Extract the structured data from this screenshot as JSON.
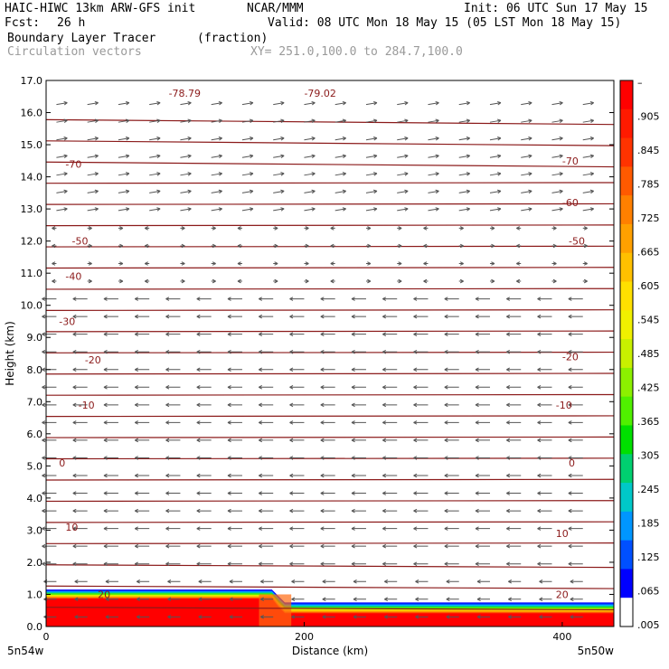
{
  "header": {
    "model": "HAIC-HIWC 13km ARW-GFS init",
    "org": "NCAR/MMM",
    "init": "Init: 06 UTC Sun 17 May 15",
    "fcst_label": "Fcst:",
    "fcst_value": "26 h",
    "valid": "Valid: 08 UTC Mon 18 May 15 (05 LST Mon 18 May 15)",
    "field_name": "Boundary Layer Tracer",
    "field_units": "(fraction)",
    "vector_name": "Circulation vectors",
    "xsec_coords": "XY= 251.0,100.0 to 284.7,100.0"
  },
  "chart_data": {
    "type": "cross-section",
    "xlabel": "Distance (km)",
    "ylabel": "Height (km)",
    "xlim": [
      0,
      440
    ],
    "ylim": [
      0,
      17
    ],
    "x_ticks": [
      0,
      200,
      400
    ],
    "y_ticks": [
      "0.0",
      "1.0",
      "2.0",
      "3.0",
      "4.0",
      "5.0",
      "6.0",
      "7.0",
      "8.0",
      "9.0",
      "10.0",
      "11.0",
      "12.0",
      "13.0",
      "14.0",
      "15.0",
      "16.0",
      "17.0"
    ],
    "left_endpoint": "5n54w",
    "right_endpoint": "5n50w",
    "colorbar": {
      "labels": [
        "–",
        ".905",
        ".845",
        ".785",
        ".725",
        ".665",
        ".605",
        ".545",
        ".485",
        ".425",
        ".365",
        ".305",
        ".245",
        ".185",
        ".125",
        ".065",
        ".005"
      ],
      "colors": [
        "#ff0000",
        "#ff1a00",
        "#ff3300",
        "#ff5a00",
        "#ff8000",
        "#ffa000",
        "#ffc000",
        "#ffe000",
        "#f0f000",
        "#c8f000",
        "#8cf000",
        "#50f000",
        "#00e000",
        "#00d070",
        "#00c8c8",
        "#0096ff",
        "#0050ff",
        "#0000ff",
        "#ffffff"
      ]
    },
    "isotherm_labels": [
      {
        "text": "-78.79",
        "x": 95,
        "y": 16.6
      },
      {
        "text": "-79.02",
        "x": 200,
        "y": 16.6
      },
      {
        "text": "-70",
        "x": 15,
        "y": 14.4
      },
      {
        "text": "-70",
        "x": 400,
        "y": 14.5
      },
      {
        "text": "-60",
        "x": 400,
        "y": 13.2
      },
      {
        "text": "-50",
        "x": 20,
        "y": 12.0
      },
      {
        "text": "-50",
        "x": 405,
        "y": 12.0
      },
      {
        "text": "-40",
        "x": 15,
        "y": 10.9
      },
      {
        "text": "-30",
        "x": 10,
        "y": 9.5
      },
      {
        "text": "-20",
        "x": 30,
        "y": 8.3
      },
      {
        "text": "-20",
        "x": 400,
        "y": 8.4
      },
      {
        "text": "-10",
        "x": 25,
        "y": 6.9
      },
      {
        "text": "-10",
        "x": 395,
        "y": 6.9
      },
      {
        "text": "0",
        "x": 10,
        "y": 5.1
      },
      {
        "text": "0",
        "x": 405,
        "y": 5.1
      },
      {
        "text": "10",
        "x": 15,
        "y": 3.1
      },
      {
        "text": "10",
        "x": 395,
        "y": 2.9
      },
      {
        "text": "20",
        "x": 40,
        "y": 1.0
      },
      {
        "text": "20",
        "x": 395,
        "y": 1.0
      }
    ]
  }
}
